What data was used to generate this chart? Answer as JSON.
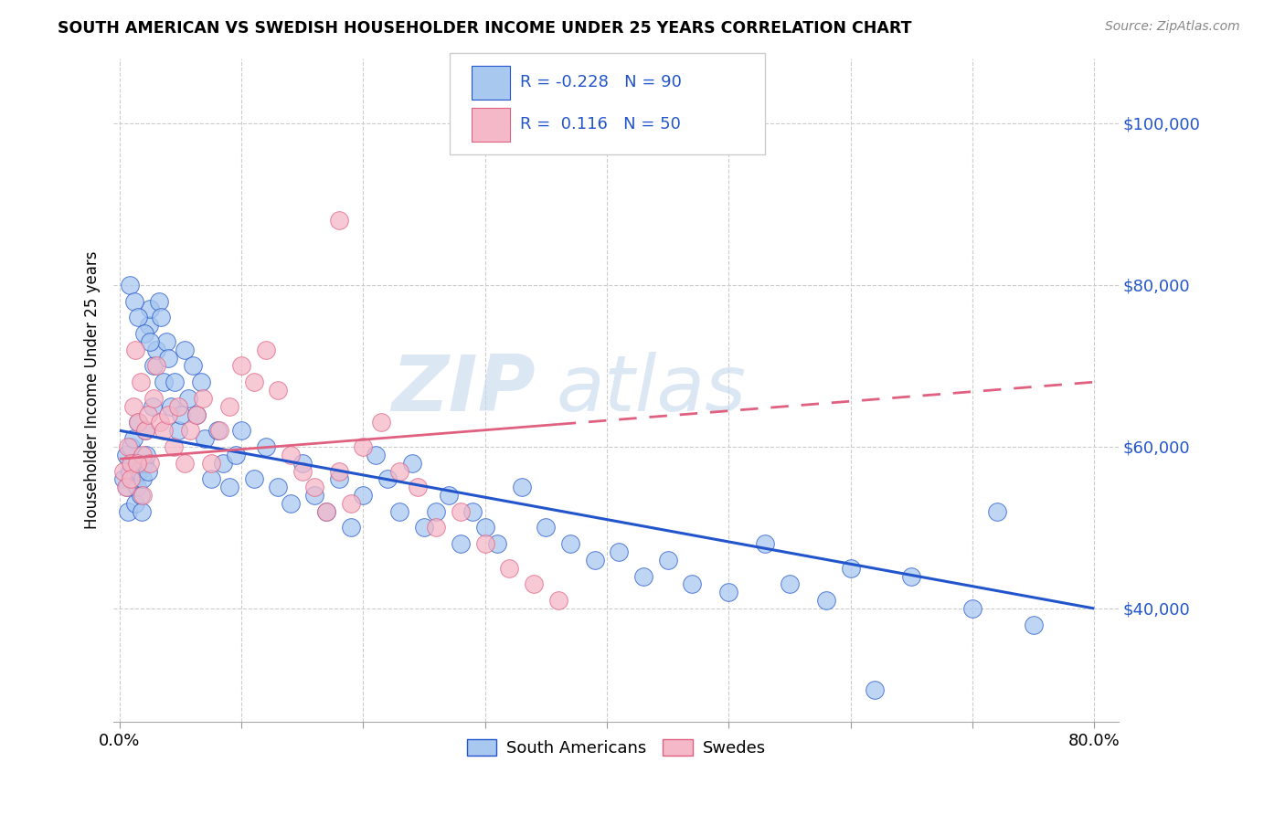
{
  "title": "SOUTH AMERICAN VS SWEDISH HOUSEHOLDER INCOME UNDER 25 YEARS CORRELATION CHART",
  "source": "Source: ZipAtlas.com",
  "ylabel": "Householder Income Under 25 years",
  "y_ticks": [
    40000,
    60000,
    80000,
    100000
  ],
  "y_tick_labels": [
    "$40,000",
    "$60,000",
    "$80,000",
    "$100,000"
  ],
  "x_ticks": [
    0.0,
    0.1,
    0.2,
    0.3,
    0.4,
    0.5,
    0.6,
    0.7,
    0.8
  ],
  "xlim": [
    -0.005,
    0.82
  ],
  "ylim": [
    26000,
    108000
  ],
  "color_blue": "#A8C8F0",
  "color_pink": "#F4B8C8",
  "line_blue": "#2255CC",
  "line_pink": "#E06080",
  "legend_r_blue": "-0.228",
  "legend_n_blue": "90",
  "legend_r_pink": "0.116",
  "legend_n_pink": "50",
  "blue_line_x0": 0.0,
  "blue_line_y0": 62000,
  "blue_line_x1": 0.8,
  "blue_line_y1": 40000,
  "pink_line_x0": 0.0,
  "pink_line_y0": 58500,
  "pink_line_x1": 0.8,
  "pink_line_y1": 68000,
  "blue_x": [
    0.003,
    0.005,
    0.006,
    0.007,
    0.008,
    0.009,
    0.01,
    0.011,
    0.012,
    0.013,
    0.014,
    0.015,
    0.016,
    0.017,
    0.018,
    0.019,
    0.02,
    0.021,
    0.022,
    0.023,
    0.024,
    0.025,
    0.027,
    0.028,
    0.03,
    0.032,
    0.034,
    0.036,
    0.038,
    0.04,
    0.042,
    0.045,
    0.048,
    0.05,
    0.053,
    0.056,
    0.06,
    0.063,
    0.067,
    0.07,
    0.075,
    0.08,
    0.085,
    0.09,
    0.095,
    0.1,
    0.11,
    0.12,
    0.13,
    0.14,
    0.15,
    0.16,
    0.17,
    0.18,
    0.19,
    0.2,
    0.21,
    0.22,
    0.23,
    0.24,
    0.25,
    0.26,
    0.27,
    0.28,
    0.29,
    0.3,
    0.31,
    0.33,
    0.35,
    0.37,
    0.39,
    0.41,
    0.43,
    0.45,
    0.47,
    0.5,
    0.53,
    0.55,
    0.58,
    0.6,
    0.62,
    0.65,
    0.7,
    0.72,
    0.75,
    0.008,
    0.012,
    0.015,
    0.02,
    0.025
  ],
  "blue_y": [
    56000,
    59000,
    55000,
    52000,
    57000,
    60000,
    58000,
    61000,
    56000,
    53000,
    55000,
    63000,
    57000,
    54000,
    52000,
    56000,
    58000,
    62000,
    59000,
    57000,
    75000,
    77000,
    65000,
    70000,
    72000,
    78000,
    76000,
    68000,
    73000,
    71000,
    65000,
    68000,
    62000,
    64000,
    72000,
    66000,
    70000,
    64000,
    68000,
    61000,
    56000,
    62000,
    58000,
    55000,
    59000,
    62000,
    56000,
    60000,
    55000,
    53000,
    58000,
    54000,
    52000,
    56000,
    50000,
    54000,
    59000,
    56000,
    52000,
    58000,
    50000,
    52000,
    54000,
    48000,
    52000,
    50000,
    48000,
    55000,
    50000,
    48000,
    46000,
    47000,
    44000,
    46000,
    43000,
    42000,
    48000,
    43000,
    41000,
    45000,
    30000,
    44000,
    40000,
    52000,
    38000,
    80000,
    78000,
    76000,
    74000,
    73000
  ],
  "pink_x": [
    0.003,
    0.005,
    0.007,
    0.009,
    0.011,
    0.013,
    0.015,
    0.017,
    0.019,
    0.021,
    0.023,
    0.025,
    0.028,
    0.03,
    0.033,
    0.036,
    0.04,
    0.044,
    0.048,
    0.053,
    0.058,
    0.063,
    0.068,
    0.075,
    0.082,
    0.09,
    0.1,
    0.11,
    0.12,
    0.13,
    0.14,
    0.15,
    0.16,
    0.17,
    0.18,
    0.19,
    0.2,
    0.215,
    0.23,
    0.245,
    0.26,
    0.28,
    0.3,
    0.32,
    0.34,
    0.36,
    0.009,
    0.014,
    0.019,
    0.18
  ],
  "pink_y": [
    57000,
    55000,
    60000,
    58000,
    65000,
    72000,
    63000,
    68000,
    59000,
    62000,
    64000,
    58000,
    66000,
    70000,
    63000,
    62000,
    64000,
    60000,
    65000,
    58000,
    62000,
    64000,
    66000,
    58000,
    62000,
    65000,
    70000,
    68000,
    72000,
    67000,
    59000,
    57000,
    55000,
    52000,
    57000,
    53000,
    60000,
    63000,
    57000,
    55000,
    50000,
    52000,
    48000,
    45000,
    43000,
    41000,
    56000,
    58000,
    54000,
    88000
  ]
}
